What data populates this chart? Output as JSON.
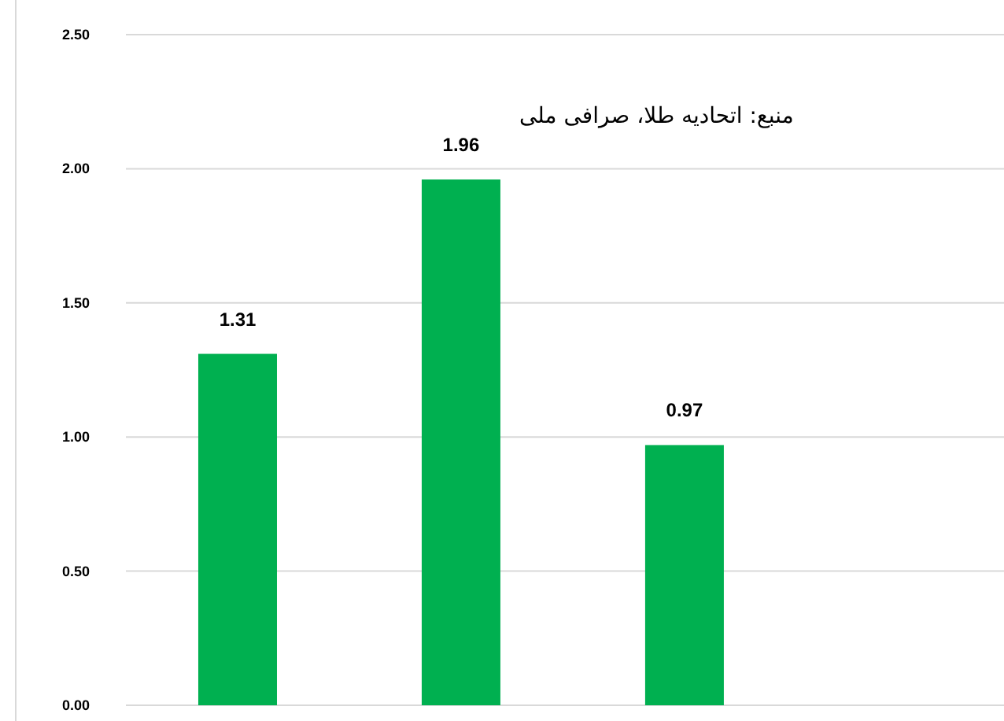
{
  "chart_data": {
    "type": "bar",
    "categories": [
      null,
      null,
      null
    ],
    "values": [
      1.31,
      1.96,
      0.97
    ],
    "color": "#00b050",
    "ylim": [
      0,
      2.5
    ],
    "yticks": [
      {
        "value": 0,
        "label": "0.00"
      },
      {
        "value": 0.5,
        "label": "0.50"
      },
      {
        "value": 1,
        "label": "1.00"
      },
      {
        "value": 1.5,
        "label": "1.50"
      },
      {
        "value": 2,
        "label": "2.00"
      },
      {
        "value": 2.5,
        "label": "2.50"
      }
    ],
    "grid": "y",
    "data_labels": true,
    "annotations": [
      "منبع: اتحادیه طلا، صرافی ملی"
    ]
  }
}
